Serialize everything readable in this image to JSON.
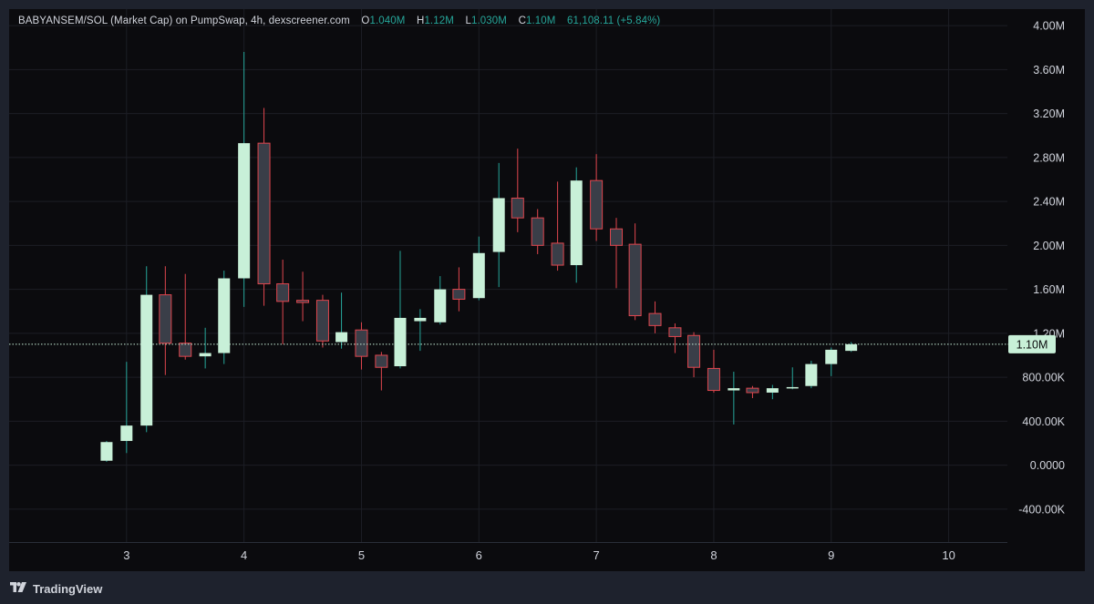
{
  "legend": {
    "symbol": "BABYANSEM/SOL (Market Cap) on PumpSwap, 4h, dexscreener.com",
    "open_key": "O",
    "open": "1.040M",
    "high_key": "H",
    "high": "1.12M",
    "low_key": "L",
    "low": "1.030M",
    "close_key": "C",
    "close": "1.10M",
    "volume": "61,108.11",
    "change": "(+5.84%)"
  },
  "footer": {
    "brand": "TradingView",
    "logo_icon": "tradingview-logo-icon"
  },
  "colors": {
    "up_body": "#c8f0d8",
    "up_wick": "#26a69a",
    "down_body": "#3a3e48",
    "down_wick": "#e0464e",
    "grid": "#1c1e25",
    "axis_text": "#d1d4dc",
    "price_tag_bg": "#c8f0d8"
  },
  "chart_data": {
    "type": "candlestick",
    "title": "BABYANSEM/SOL (Market Cap) on PumpSwap, 4h, dexscreener.com",
    "x_ticks": [
      "3",
      "4",
      "5",
      "6",
      "7",
      "8",
      "9",
      "10"
    ],
    "y_ticks": [
      "-400.00K",
      "0.0000",
      "400.00K",
      "800.00K",
      "1.20M",
      "1.60M",
      "2.00M",
      "2.40M",
      "2.80M",
      "3.20M",
      "3.60M",
      "4.00M"
    ],
    "ylim": [
      -700000,
      4150000
    ],
    "xlim": [
      2.0,
      10.5
    ],
    "current_price_label": "1.10M",
    "current_price": 1100000,
    "grid": true,
    "candles": [
      {
        "x": 2.83,
        "o": 40000,
        "h": 220000,
        "l": 30000,
        "c": 210000
      },
      {
        "x": 3.0,
        "o": 220000,
        "h": 940000,
        "l": 110000,
        "c": 360000
      },
      {
        "x": 3.17,
        "o": 360000,
        "h": 1810000,
        "l": 300000,
        "c": 1550000
      },
      {
        "x": 3.33,
        "o": 1550000,
        "h": 1810000,
        "l": 820000,
        "c": 1110000
      },
      {
        "x": 3.5,
        "o": 1110000,
        "h": 1740000,
        "l": 960000,
        "c": 990000
      },
      {
        "x": 3.67,
        "o": 990000,
        "h": 1250000,
        "l": 880000,
        "c": 1020000
      },
      {
        "x": 3.83,
        "o": 1020000,
        "h": 1770000,
        "l": 920000,
        "c": 1700000
      },
      {
        "x": 4.0,
        "o": 1700000,
        "h": 3760000,
        "l": 1440000,
        "c": 2930000
      },
      {
        "x": 4.17,
        "o": 2930000,
        "h": 3250000,
        "l": 1450000,
        "c": 1650000
      },
      {
        "x": 4.33,
        "o": 1650000,
        "h": 1870000,
        "l": 1100000,
        "c": 1490000
      },
      {
        "x": 4.5,
        "o": 1500000,
        "h": 1760000,
        "l": 1310000,
        "c": 1480000
      },
      {
        "x": 4.67,
        "o": 1500000,
        "h": 1550000,
        "l": 1070000,
        "c": 1130000
      },
      {
        "x": 4.83,
        "o": 1120000,
        "h": 1570000,
        "l": 1060000,
        "c": 1210000
      },
      {
        "x": 5.0,
        "o": 1230000,
        "h": 1300000,
        "l": 870000,
        "c": 990000
      },
      {
        "x": 5.17,
        "o": 1000000,
        "h": 1030000,
        "l": 680000,
        "c": 890000
      },
      {
        "x": 5.33,
        "o": 900000,
        "h": 1950000,
        "l": 880000,
        "c": 1340000
      },
      {
        "x": 5.5,
        "o": 1310000,
        "h": 1420000,
        "l": 1040000,
        "c": 1340000
      },
      {
        "x": 5.67,
        "o": 1300000,
        "h": 1720000,
        "l": 1280000,
        "c": 1600000
      },
      {
        "x": 5.83,
        "o": 1600000,
        "h": 1800000,
        "l": 1400000,
        "c": 1510000
      },
      {
        "x": 6.0,
        "o": 1520000,
        "h": 2080000,
        "l": 1500000,
        "c": 1930000
      },
      {
        "x": 6.17,
        "o": 1940000,
        "h": 2750000,
        "l": 1620000,
        "c": 2430000
      },
      {
        "x": 6.33,
        "o": 2430000,
        "h": 2880000,
        "l": 2120000,
        "c": 2250000
      },
      {
        "x": 6.5,
        "o": 2250000,
        "h": 2330000,
        "l": 1920000,
        "c": 2000000
      },
      {
        "x": 6.67,
        "o": 2020000,
        "h": 2580000,
        "l": 1770000,
        "c": 1820000
      },
      {
        "x": 6.83,
        "o": 1820000,
        "h": 2710000,
        "l": 1660000,
        "c": 2590000
      },
      {
        "x": 7.0,
        "o": 2590000,
        "h": 2830000,
        "l": 2040000,
        "c": 2150000
      },
      {
        "x": 7.17,
        "o": 2150000,
        "h": 2250000,
        "l": 1610000,
        "c": 2000000
      },
      {
        "x": 7.33,
        "o": 2010000,
        "h": 2200000,
        "l": 1320000,
        "c": 1360000
      },
      {
        "x": 7.5,
        "o": 1380000,
        "h": 1490000,
        "l": 1200000,
        "c": 1270000
      },
      {
        "x": 7.67,
        "o": 1250000,
        "h": 1290000,
        "l": 1020000,
        "c": 1170000
      },
      {
        "x": 7.83,
        "o": 1180000,
        "h": 1210000,
        "l": 800000,
        "c": 890000
      },
      {
        "x": 8.0,
        "o": 880000,
        "h": 1050000,
        "l": 660000,
        "c": 680000
      },
      {
        "x": 8.17,
        "o": 680000,
        "h": 850000,
        "l": 370000,
        "c": 700000
      },
      {
        "x": 8.33,
        "o": 700000,
        "h": 720000,
        "l": 610000,
        "c": 660000
      },
      {
        "x": 8.5,
        "o": 660000,
        "h": 730000,
        "l": 600000,
        "c": 700000
      },
      {
        "x": 8.67,
        "o": 700000,
        "h": 890000,
        "l": 690000,
        "c": 710000
      },
      {
        "x": 8.83,
        "o": 720000,
        "h": 950000,
        "l": 700000,
        "c": 920000
      },
      {
        "x": 9.0,
        "o": 920000,
        "h": 1070000,
        "l": 810000,
        "c": 1050000
      },
      {
        "x": 9.17,
        "o": 1040000,
        "h": 1120000,
        "l": 1030000,
        "c": 1100000
      }
    ]
  }
}
